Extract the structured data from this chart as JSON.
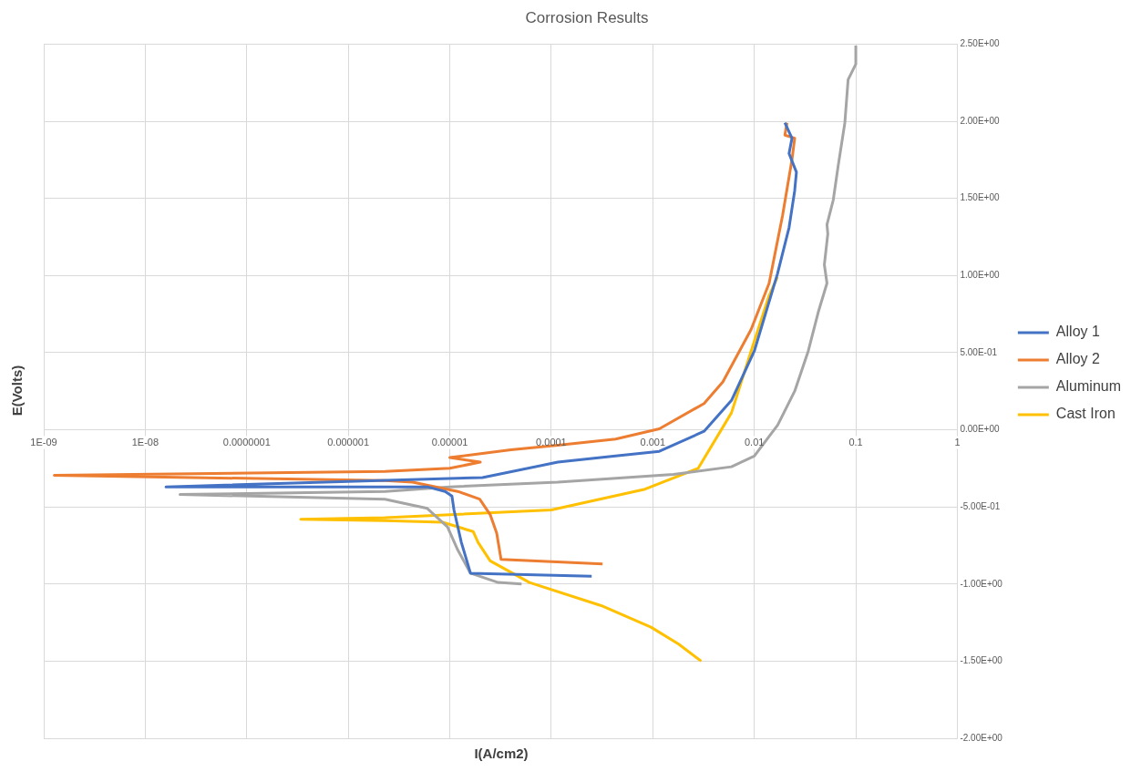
{
  "chart_data": {
    "type": "line",
    "title": "Corrosion Results",
    "xlabel": "I(A/cm2)",
    "ylabel": "E(Volts)",
    "log": "x",
    "grid": true,
    "legend": "right",
    "marker": "none",
    "line_style": "solid",
    "xlim": [
      1e-09,
      1
    ],
    "ylim": [
      -2,
      2.5
    ],
    "xticks": [
      {
        "value": 1e-09,
        "label": "1E-09"
      },
      {
        "value": 1e-08,
        "label": "1E-08"
      },
      {
        "value": 1e-07,
        "label": "0.0000001"
      },
      {
        "value": 1e-06,
        "label": "0.000001"
      },
      {
        "value": 1e-05,
        "label": "0.00001"
      },
      {
        "value": 0.0001,
        "label": "0.0001"
      },
      {
        "value": 0.001,
        "label": "0.001"
      },
      {
        "value": 0.01,
        "label": "0.01"
      },
      {
        "value": 0.1,
        "label": "0.1"
      },
      {
        "value": 1,
        "label": "1"
      }
    ],
    "yticks": [
      {
        "value": -2,
        "label": "-2.00E+00"
      },
      {
        "value": -1.5,
        "label": "-1.50E+00"
      },
      {
        "value": -1,
        "label": "-1.00E+00"
      },
      {
        "value": -0.5,
        "label": "-5.00E-01"
      },
      {
        "value": 0,
        "label": "0.00E+00"
      },
      {
        "value": 0.5,
        "label": "5.00E-01"
      },
      {
        "value": 1,
        "label": "1.00E+00"
      },
      {
        "value": 1.5,
        "label": "1.50E+00"
      },
      {
        "value": 2,
        "label": "2.00E+00"
      },
      {
        "value": 2.5,
        "label": "2.50E+00"
      }
    ],
    "series": [
      {
        "name": "Alloy 1",
        "color": "#4472c4",
        "x": [
          0.00025,
          1.6e-05,
          1.3e-05,
          1.1e-05,
          1.05e-05,
          9e-06,
          6e-06,
          1.6e-08,
          2.1e-05,
          0.000116,
          0.00043,
          0.00116,
          0.0032,
          0.00596,
          0.01,
          0.0169,
          0.022,
          0.025,
          0.026,
          0.022,
          0.0235,
          0.02
        ],
        "values": [
          -0.95,
          -0.93,
          -0.73,
          -0.52,
          -0.43,
          -0.4,
          -0.37,
          -0.37,
          -0.31,
          -0.21,
          -0.17,
          -0.14,
          -0.01,
          0.19,
          0.51,
          1.01,
          1.31,
          1.55,
          1.67,
          1.79,
          1.89,
          1.99
        ]
      },
      {
        "name": "Alloy 2",
        "color": "#ed7d31",
        "x": [
          0.00032,
          3.2e-05,
          2.9e-05,
          2.5e-05,
          1.97e-05,
          1.2e-05,
          4.3e-06,
          2.3e-06,
          1.27e-09,
          2.3e-06,
          1e-05,
          2e-05,
          1e-05,
          4e-05,
          0.000116,
          0.00043,
          0.00116,
          0.0032,
          0.0049,
          0.0093,
          0.014,
          0.019,
          0.0235,
          0.025,
          0.02,
          0.021
        ],
        "values": [
          -0.87,
          -0.84,
          -0.67,
          -0.55,
          -0.45,
          -0.4,
          -0.34,
          -0.33,
          -0.295,
          -0.27,
          -0.25,
          -0.21,
          -0.18,
          -0.13,
          -0.1,
          -0.06,
          0.006,
          0.17,
          0.31,
          0.65,
          0.95,
          1.39,
          1.75,
          1.89,
          1.91,
          1.99
        ]
      },
      {
        "name": "Aluminum",
        "color": "#a5a5a5",
        "x": [
          5.1e-05,
          3e-05,
          1.6e-05,
          1.2e-05,
          9.5e-06,
          6e-06,
          2.3e-06,
          2.2e-08,
          2.3e-06,
          1e-05,
          0.000116,
          0.0016,
          0.00596,
          0.01,
          0.017,
          0.025,
          0.034,
          0.043,
          0.052,
          0.049,
          0.053,
          0.052,
          0.06,
          0.067,
          0.078,
          0.084,
          0.1,
          0.1
        ],
        "values": [
          -1.0,
          -0.99,
          -0.93,
          -0.78,
          -0.63,
          -0.51,
          -0.45,
          -0.42,
          -0.4,
          -0.37,
          -0.34,
          -0.29,
          -0.24,
          -0.17,
          0.03,
          0.25,
          0.51,
          0.77,
          0.95,
          1.07,
          1.27,
          1.33,
          1.49,
          1.71,
          1.99,
          2.27,
          2.37,
          2.49
        ]
      },
      {
        "name": "Cast Iron",
        "color": "#ffc000",
        "x": [
          0.003,
          0.0018,
          0.00096,
          0.00031,
          6.1e-05,
          2.5e-05,
          1.9e-05,
          1.7e-05,
          8.5e-06,
          2.3e-06,
          3.4e-07,
          2.3e-06,
          0.0001,
          0.00084,
          0.0028,
          0.00596,
          0.0093,
          0.014,
          0.0169
        ],
        "values": [
          -1.5,
          -1.39,
          -1.28,
          -1.14,
          -0.99,
          -0.85,
          -0.73,
          -0.66,
          -0.6,
          -0.59,
          -0.58,
          -0.57,
          -0.52,
          -0.385,
          -0.25,
          0.11,
          0.51,
          0.87,
          0.99
        ]
      }
    ]
  }
}
